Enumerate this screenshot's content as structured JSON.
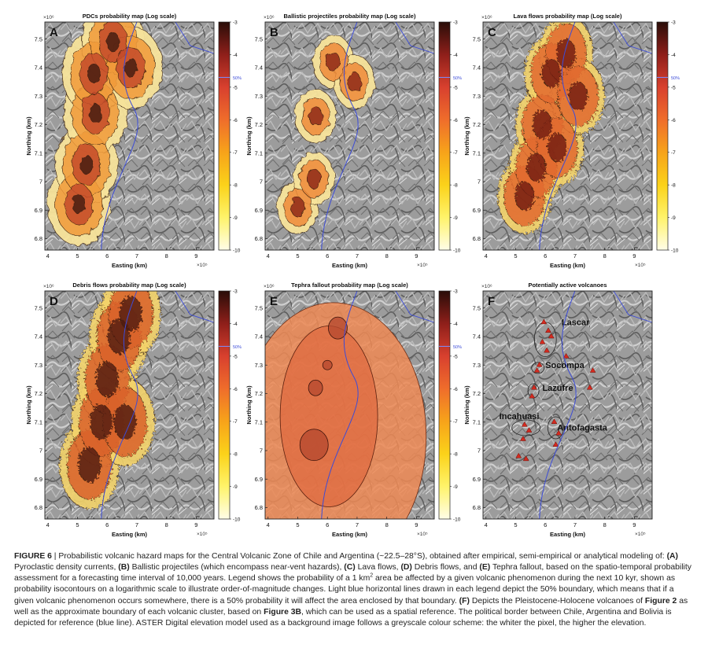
{
  "panels": [
    {
      "id": "A",
      "title": "PDCs probability map (Log scale)",
      "type": "pdc",
      "has_colorbar": true
    },
    {
      "id": "B",
      "title": "Ballistic projectiles probability map (Log scale)",
      "type": "ballistic",
      "has_colorbar": true
    },
    {
      "id": "C",
      "title": "Lava flows probability map (Log scale)",
      "type": "lava",
      "has_colorbar": true
    },
    {
      "id": "D",
      "title": "Debris flows probability map (Log scale)",
      "type": "debris",
      "has_colorbar": true
    },
    {
      "id": "E",
      "title": "Tephra fallout probability map (Log scale)",
      "type": "tephra",
      "has_colorbar": true
    },
    {
      "id": "F",
      "title": "Potentially active volcanoes",
      "type": "volcanoes",
      "has_colorbar": false
    }
  ],
  "axes": {
    "xlabel": "Easting (km)",
    "ylabel": "Northing (km)",
    "x_ticks": [
      "4",
      "5",
      "6",
      "7",
      "8",
      "9"
    ],
    "y_ticks": [
      "6.8",
      "6.9",
      "7",
      "7.1",
      "7.2",
      "7.3",
      "7.4",
      "7.5"
    ],
    "x_exponent": "×10⁵",
    "y_exponent": "×10⁶",
    "xlim": [
      3.9,
      9.6
    ],
    "ylim": [
      6.76,
      7.56
    ]
  },
  "colorbar": {
    "ticks": [
      "-3",
      "-4",
      "-5",
      "-6",
      "-7",
      "-8",
      "-9",
      "-10"
    ],
    "range": [
      -10,
      -3
    ],
    "marker_label": "50%",
    "marker_value": -4.7,
    "colors": [
      "#fffde8",
      "#fff36a",
      "#fbd21a",
      "#f7a31a",
      "#ef6d2b",
      "#d8402e",
      "#8e1f1a",
      "#2a0d08"
    ]
  },
  "volcano_clusters": [
    "Lascar",
    "Socompa",
    "Lazufre",
    "Incahuasi",
    "Antofagasta"
  ],
  "colors": {
    "border_line": "#3b4bd8",
    "hillshade": "#9a9a9a",
    "volcano_marker": "#d42a1f"
  },
  "caption": {
    "label": "FIGURE 6",
    "separator": " | ",
    "text1": "Probabilistic volcanic hazard maps for the Central Volcanic Zone of Chile and Argentina (~22.5–28°S), obtained after empirical, semi-empirical or analytical modeling of: ",
    "A": "(A)",
    "text_A": " Pyroclastic density currents, ",
    "B": "(B)",
    "text_B": " Ballistic projectiles (which encompass near-vent hazards), ",
    "C": "(C)",
    "text_C": " Lava flows, ",
    "D": "(D)",
    "text_D": " Debris flows, and ",
    "E": "(E)",
    "text_E": " Tephra fallout, based on the spatio-temporal probability assessment for a forecasting time interval of 10,000 years. Legend shows the probability of a 1 km",
    "sup": "2",
    "text2": " area be affected by a given volcanic phenomenon during the next 10 kyr, shown as probability isocontours on a logarithmic scale to illustrate order-of-magnitude changes. Light blue horizontal lines drawn in each legend depict the 50% boundary, which means that if a given volcanic phenomenon occurs somewhere, there is a 50% probability it will affect the area enclosed by that boundary. ",
    "F": "(F)",
    "text_F": " Depicts the Pleistocene-Holocene volcanoes of ",
    "fig2": "Figure 2",
    "text3": " as well as the approximate boundary of each volcanic cluster, based on ",
    "fig3b": "Figure 3B",
    "text4": ", which can be used as a spatial reference. The political border between Chile, Argentina and Bolivia is depicted for reference (blue line). ASTER Digital elevation model used as a background image follows a greyscale colour scheme: the whiter the pixel, the higher the elevation."
  }
}
